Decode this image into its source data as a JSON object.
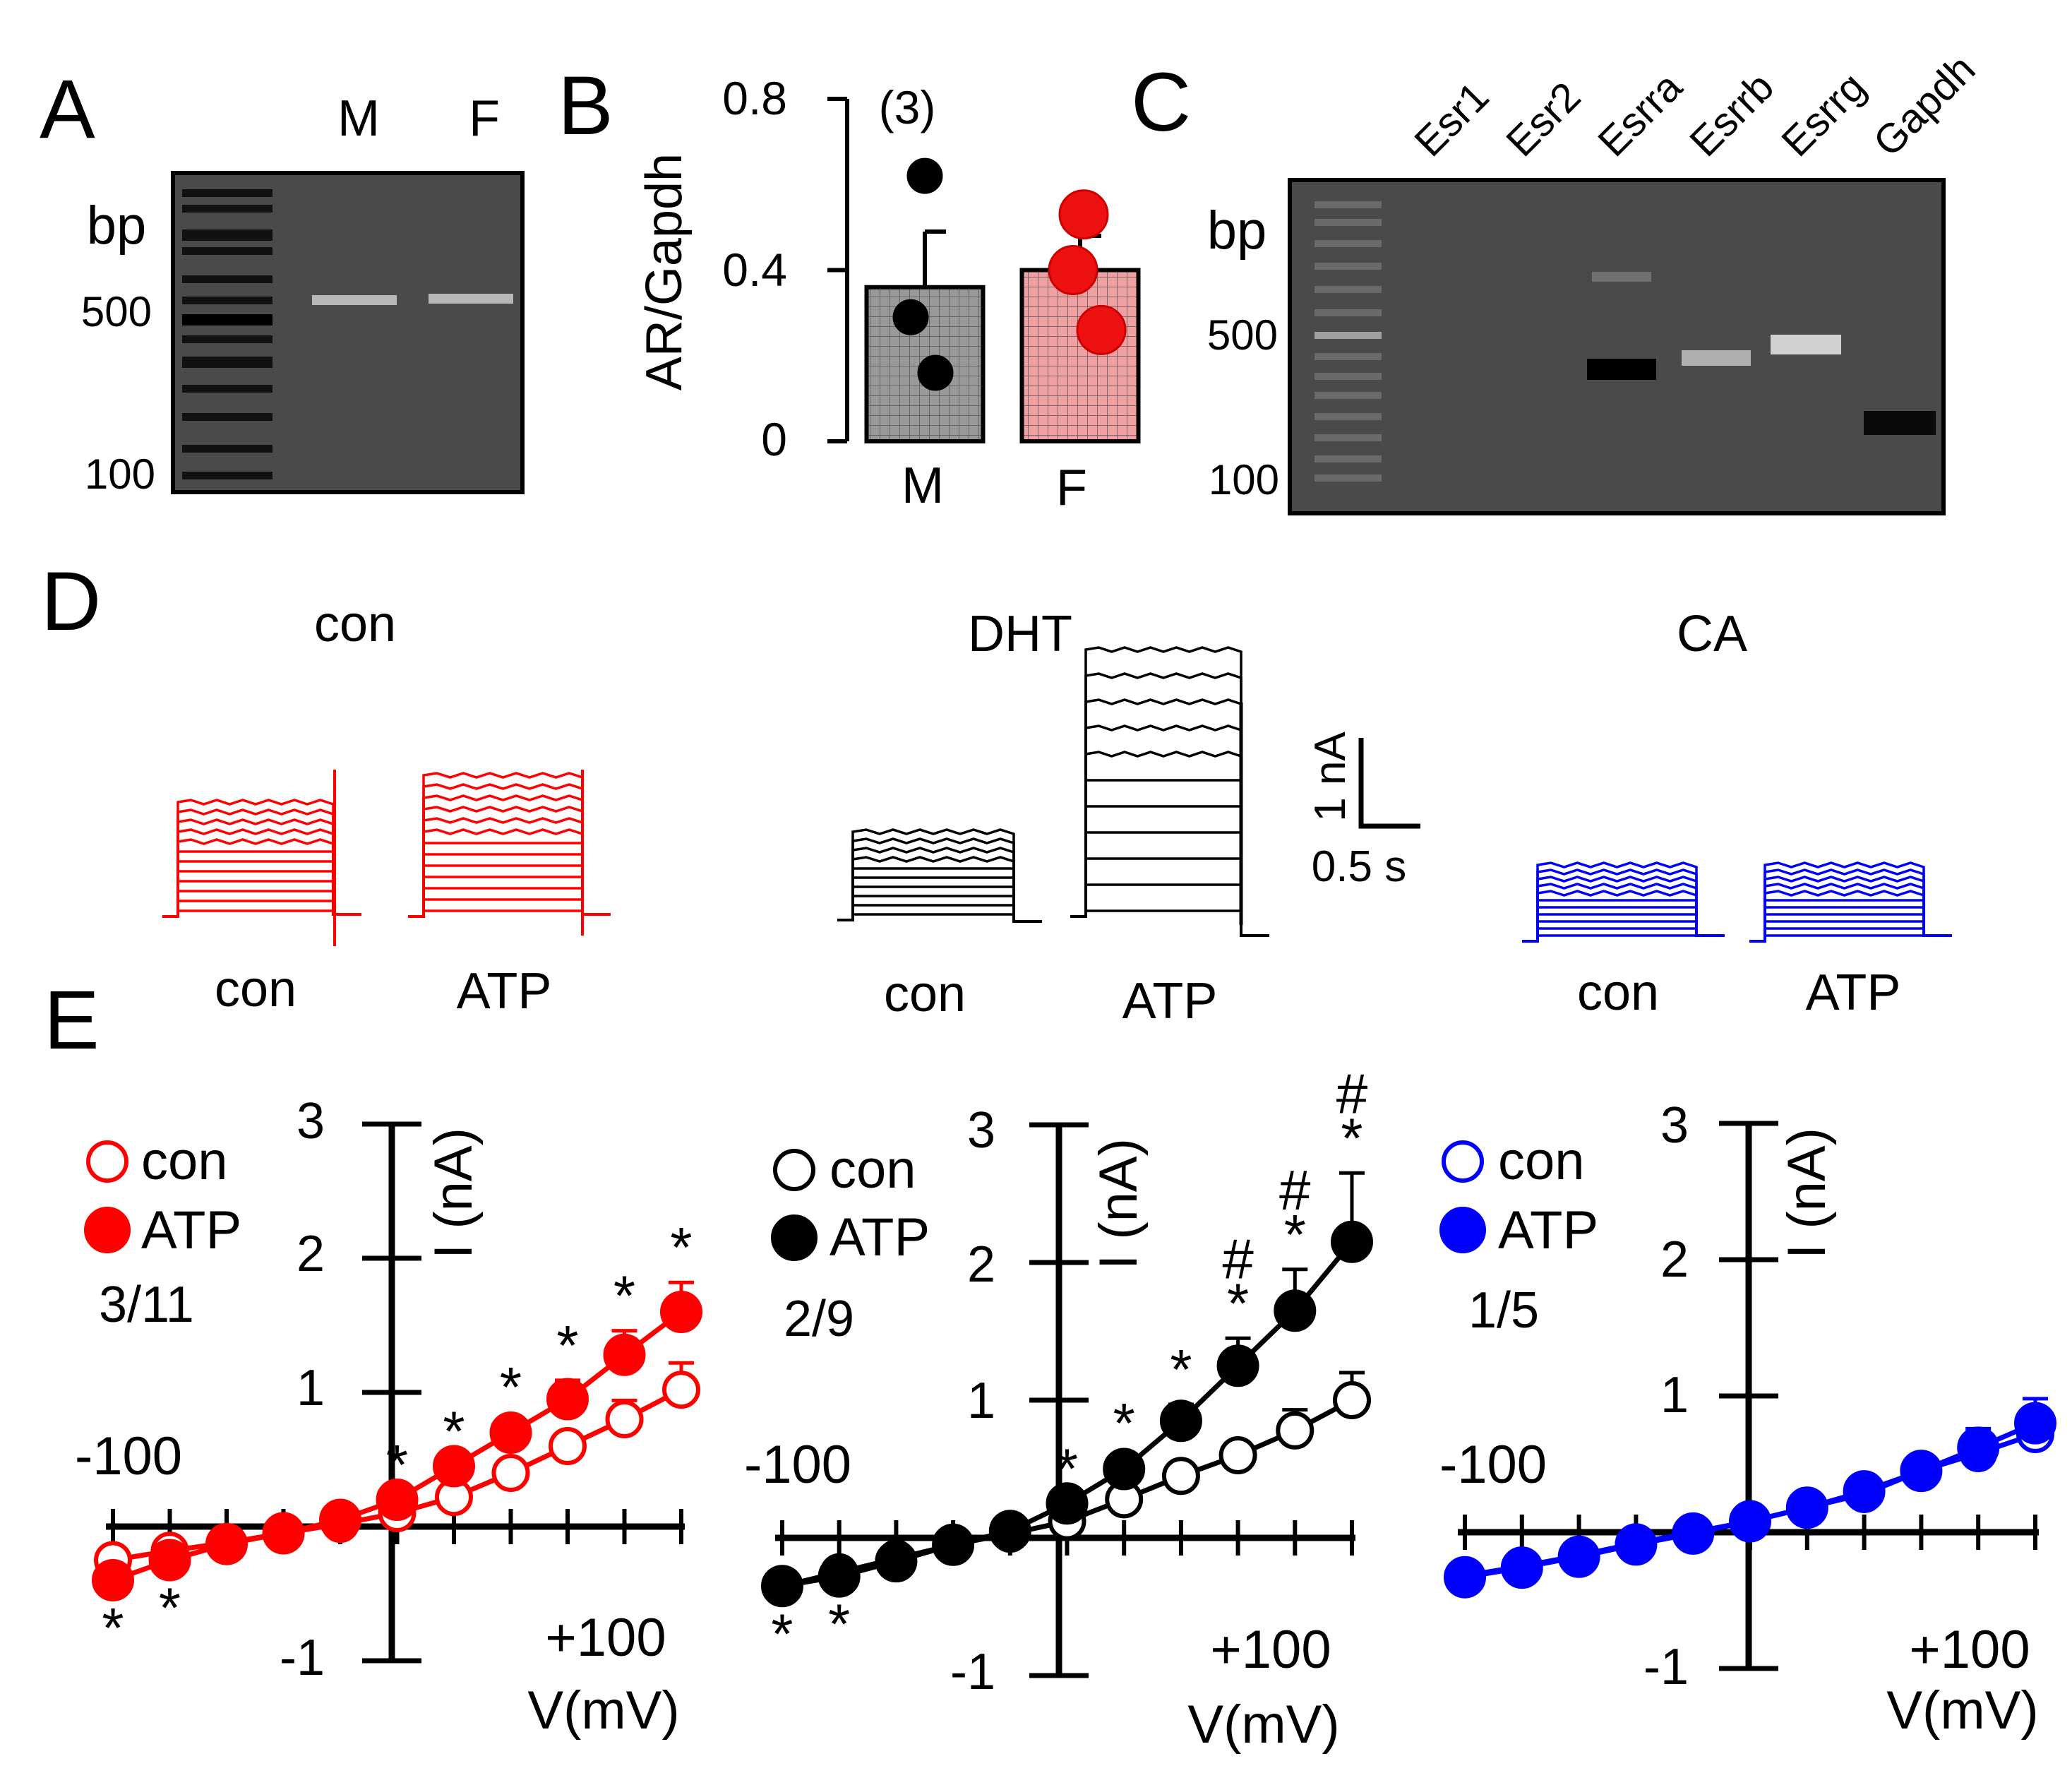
{
  "panel_labels": [
    "A",
    "B",
    "C",
    "D",
    "E"
  ],
  "panel_a": {
    "lanes": [
      "M",
      "F"
    ],
    "ladder_title": "bp",
    "ladder_labels": [
      "500",
      "100"
    ]
  },
  "chart_b": {
    "type": "bar",
    "ylabel": "AR/Gapdh",
    "categories": [
      "M",
      "F"
    ],
    "means": [
      0.36,
      0.4
    ],
    "sem": [
      0.13,
      0.08
    ],
    "points": [
      [
        0.62,
        0.29,
        0.16
      ],
      [
        0.53,
        0.4,
        0.26
      ]
    ],
    "n_label": "(3)",
    "yticks": [
      "0",
      "0.4",
      "0.8"
    ],
    "ylim": [
      0,
      0.8
    ],
    "colors": [
      "#999999",
      "#f0a0a0"
    ],
    "dot_colors": [
      "#000000",
      "#ee1111"
    ]
  },
  "panel_c": {
    "genes": [
      "Esr1",
      "Esr2",
      "Esrra",
      "Esrrb",
      "Esrrg",
      "Gapdh"
    ],
    "ladder_title": "bp",
    "ladder_labels": [
      "500",
      "100"
    ]
  },
  "panel_d": {
    "groups": [
      {
        "title": "con",
        "color": "#ff0000",
        "trace_labels": [
          "con",
          "ATP"
        ]
      },
      {
        "title": "DHT",
        "color": "#000000",
        "trace_labels": [
          "con",
          "ATP"
        ]
      },
      {
        "title": "CA",
        "color": "#0000ff",
        "trace_labels": [
          "con",
          "ATP"
        ]
      }
    ],
    "scale_bar": {
      "current": "1 nA",
      "time": "0.5 s"
    }
  },
  "chart_data": [
    {
      "type": "line",
      "panel": "E-con",
      "title": "",
      "xlabel": "V(mV)",
      "ylabel": "I (nA)",
      "xlim": [
        -100,
        100
      ],
      "ylim": [
        -1,
        3
      ],
      "x_tick_labels": [
        "-100",
        "+100"
      ],
      "y_tick_labels": [
        "-1",
        "1",
        "2",
        "3"
      ],
      "color": "#ff0000",
      "ratio": "3/11",
      "x": [
        -100,
        -80,
        -60,
        -40,
        -20,
        0,
        20,
        40,
        60,
        80,
        100
      ],
      "series": [
        {
          "name": "con",
          "values": [
            -0.25,
            -0.18,
            -0.12,
            -0.05,
            0.02,
            0.1,
            0.22,
            0.4,
            0.6,
            0.8,
            1.02
          ],
          "err": [
            0,
            0,
            0,
            0,
            0,
            0,
            0,
            0,
            0,
            0.14,
            0.2
          ]
        },
        {
          "name": "ATP",
          "values": [
            -0.4,
            -0.25,
            -0.13,
            -0.05,
            0.05,
            0.2,
            0.45,
            0.7,
            0.95,
            1.28,
            1.6
          ],
          "err": [
            0,
            0,
            0,
            0,
            0,
            0,
            0,
            0.08,
            0.14,
            0.18,
            0.22
          ]
        }
      ],
      "sig_marks": [
        {
          "x": -100,
          "label": "*",
          "pos": "below"
        },
        {
          "x": -80,
          "label": "*",
          "pos": "below"
        },
        {
          "x": 0,
          "label": "*",
          "pos": "above"
        },
        {
          "x": 20,
          "label": "*",
          "pos": "above"
        },
        {
          "x": 40,
          "label": "*",
          "pos": "above"
        },
        {
          "x": 60,
          "label": "*",
          "pos": "above"
        },
        {
          "x": 80,
          "label": "*",
          "pos": "above"
        },
        {
          "x": 100,
          "label": "*",
          "pos": "above"
        }
      ]
    },
    {
      "type": "line",
      "panel": "E-DHT",
      "title": "",
      "xlabel": "V(mV)",
      "ylabel": "I (nA)",
      "xlim": [
        -100,
        100
      ],
      "ylim": [
        -1,
        3
      ],
      "x_tick_labels": [
        "-100",
        "+100"
      ],
      "y_tick_labels": [
        "-1",
        "1",
        "2",
        "3"
      ],
      "color": "#000000",
      "ratio": "2/9",
      "x": [
        -100,
        -80,
        -60,
        -40,
        -20,
        0,
        20,
        40,
        60,
        80,
        100
      ],
      "series": [
        {
          "name": "con",
          "values": [
            -0.35,
            -0.25,
            -0.15,
            -0.05,
            0.03,
            0.12,
            0.28,
            0.45,
            0.6,
            0.78,
            1.0
          ],
          "err": [
            0,
            0,
            0,
            0,
            0,
            0,
            0,
            0,
            0,
            0.15,
            0.2
          ]
        },
        {
          "name": "ATP",
          "values": [
            -0.35,
            -0.28,
            -0.17,
            -0.05,
            0.05,
            0.25,
            0.5,
            0.85,
            1.25,
            1.65,
            2.15
          ],
          "err": [
            0,
            0,
            0,
            0,
            0,
            0,
            0.08,
            0.12,
            0.2,
            0.3,
            0.5
          ]
        }
      ],
      "sig_marks": [
        {
          "x": -100,
          "label": "*",
          "pos": "below"
        },
        {
          "x": -80,
          "label": "*",
          "pos": "below"
        },
        {
          "x": 0,
          "label": "*",
          "pos": "above"
        },
        {
          "x": 20,
          "label": "*",
          "pos": "above"
        },
        {
          "x": 40,
          "label": "*",
          "pos": "above"
        },
        {
          "x": 60,
          "label": "*",
          "pos": "above"
        },
        {
          "x": 80,
          "label": "*",
          "pos": "above"
        },
        {
          "x": 100,
          "label": "*",
          "pos": "above"
        },
        {
          "x": 60,
          "label": "#",
          "pos": "above2"
        },
        {
          "x": 80,
          "label": "#",
          "pos": "above2"
        },
        {
          "x": 100,
          "label": "#",
          "pos": "above2"
        }
      ]
    },
    {
      "type": "line",
      "panel": "E-CA",
      "title": "",
      "xlabel": "V(mV)",
      "ylabel": "I (nA)",
      "xlim": [
        -100,
        100
      ],
      "ylim": [
        -1,
        3
      ],
      "x_tick_labels": [
        "-100",
        "+100"
      ],
      "y_tick_labels": [
        "-1",
        "1",
        "2",
        "3"
      ],
      "color": "#0000ff",
      "ratio": "1/5",
      "x": [
        -100,
        -80,
        -60,
        -40,
        -20,
        0,
        20,
        40,
        60,
        80,
        100
      ],
      "series": [
        {
          "name": "con",
          "values": [
            -0.32,
            -0.25,
            -0.17,
            -0.08,
            0.0,
            0.08,
            0.18,
            0.28,
            0.45,
            0.58,
            0.72
          ],
          "err": [
            0,
            0,
            0,
            0,
            0,
            0,
            0,
            0,
            0.1,
            0.12,
            0.15
          ]
        },
        {
          "name": "ATP",
          "values": [
            -0.33,
            -0.26,
            -0.18,
            -0.09,
            -0.01,
            0.08,
            0.18,
            0.3,
            0.45,
            0.62,
            0.8
          ],
          "err": [
            0,
            0,
            0,
            0,
            0,
            0,
            0,
            0.06,
            0.1,
            0.14,
            0.18
          ]
        }
      ],
      "sig_marks": []
    }
  ]
}
